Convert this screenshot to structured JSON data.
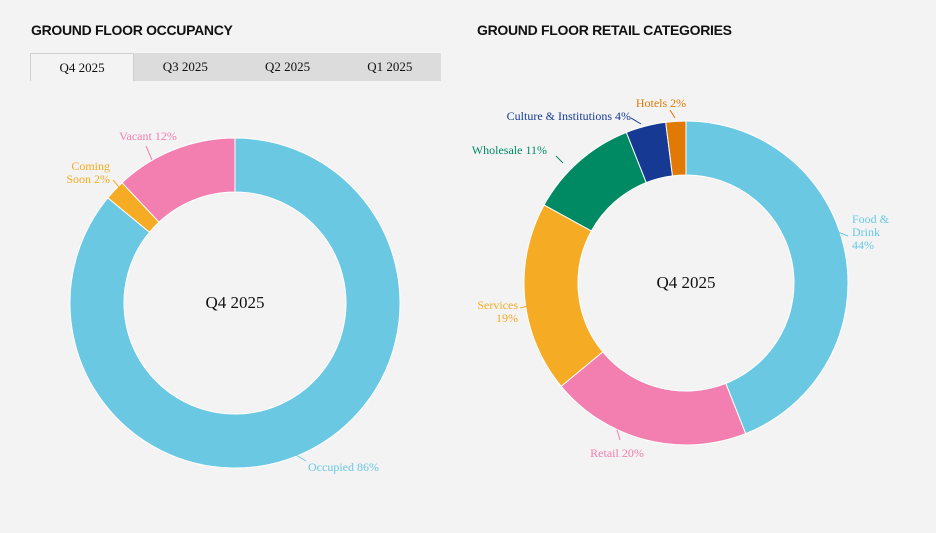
{
  "occupancy": {
    "title": "GROUND FLOOR OCCUPANCY",
    "tabs": [
      "Q4 2025",
      "Q3 2025",
      "Q2 2025",
      "Q1 2025"
    ],
    "active_tab": 0,
    "center_label": "Q4 2025"
  },
  "retail": {
    "title": "GROUND FLOOR RETAIL CATEGORIES",
    "center_label": "Q4 2025"
  },
  "chart_data": [
    {
      "type": "pie",
      "title": "GROUND FLOOR OCCUPANCY",
      "period": "Q4 2025",
      "donut": true,
      "slices": [
        {
          "name": "Occupied",
          "value": 86,
          "label": "Occupied 86%",
          "color": "#6ac8e3"
        },
        {
          "name": "Coming Soon",
          "value": 2,
          "label": "Coming Soon 2%",
          "label_lines": [
            "Coming",
            "Soon 2%"
          ],
          "color": "#f6ab24"
        },
        {
          "name": "Vacant",
          "value": 12,
          "label": "Vacant 12%",
          "color": "#f27fb0"
        }
      ]
    },
    {
      "type": "pie",
      "title": "GROUND FLOOR RETAIL CATEGORIES",
      "period": "Q4 2025",
      "donut": true,
      "slices": [
        {
          "name": "Food & Drink",
          "value": 44,
          "label": "Food & Drink 44%",
          "label_lines": [
            "Food &",
            "Drink",
            "44%"
          ],
          "color": "#6ac8e3"
        },
        {
          "name": "Retail",
          "value": 20,
          "label": "Retail 20%",
          "color": "#f27fb0"
        },
        {
          "name": "Services",
          "value": 19,
          "label": "Services 19%",
          "label_lines": [
            "Services",
            "19%"
          ],
          "color": "#f6ab24"
        },
        {
          "name": "Wholesale",
          "value": 11,
          "label": "Wholesale 11%",
          "color": "#008a64"
        },
        {
          "name": "Culture & Institutions",
          "value": 4,
          "label": "Culture & Institutions 4%",
          "color": "#163a93"
        },
        {
          "name": "Hotels",
          "value": 2,
          "label": "Hotels 2%",
          "color": "#e17a05"
        }
      ]
    }
  ]
}
